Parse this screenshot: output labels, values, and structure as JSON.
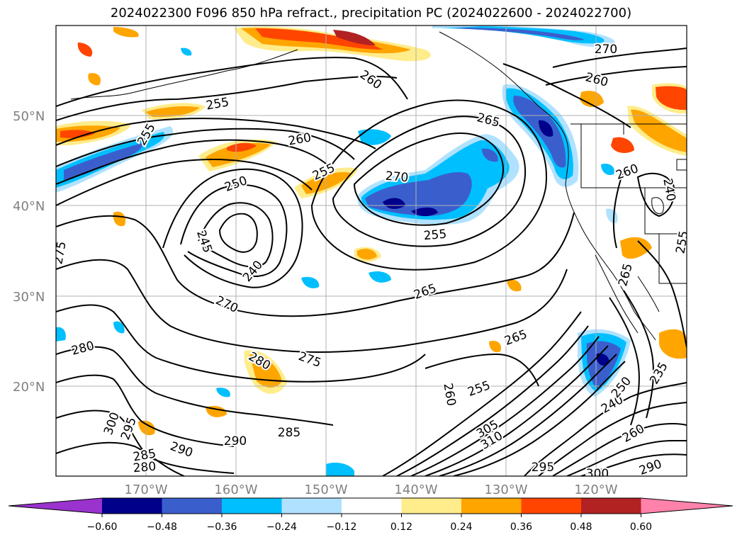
{
  "title": "2024022300 F096 850 hPa refract., precipitation PC (2024022600 - 2024022700)",
  "map": {
    "lat_labels": [
      "50°N",
      "40°N",
      "30°N",
      "20°N"
    ],
    "lon_labels": [
      "170°W",
      "160°W",
      "150°W",
      "140°W",
      "130°W",
      "120°W"
    ],
    "contour_labels": [
      {
        "text": "260",
        "rot": 35
      },
      {
        "text": "270",
        "rot": 5
      },
      {
        "text": "265",
        "rot": 15
      },
      {
        "text": "255",
        "rot": -10
      },
      {
        "text": "255",
        "rot": -60
      },
      {
        "text": "260",
        "rot": -10
      },
      {
        "text": "255",
        "rot": -25
      },
      {
        "text": "250",
        "rot": -20
      },
      {
        "text": "270",
        "rot": 0
      },
      {
        "text": "260",
        "rot": 15
      },
      {
        "text": "255",
        "rot": -5
      },
      {
        "text": "245",
        "rot": 70
      },
      {
        "text": "240",
        "rot": -50
      },
      {
        "text": "270",
        "rot": 25
      },
      {
        "text": "265",
        "rot": -20
      },
      {
        "text": "275",
        "rot": -80
      },
      {
        "text": "280",
        "rot": -15
      },
      {
        "text": "280",
        "rot": 30
      },
      {
        "text": "275",
        "rot": 20
      },
      {
        "text": "265",
        "rot": -20
      },
      {
        "text": "260",
        "rot": 80
      },
      {
        "text": "255",
        "rot": -20
      },
      {
        "text": "300",
        "rot": -70
      },
      {
        "text": "295",
        "rot": -70
      },
      {
        "text": "285",
        "rot": -10
      },
      {
        "text": "290",
        "rot": 20
      },
      {
        "text": "290",
        "rot": 0
      },
      {
        "text": "285",
        "rot": 0
      },
      {
        "text": "280",
        "rot": -5
      },
      {
        "text": "305",
        "rot": -30
      },
      {
        "text": "310",
        "rot": -30
      },
      {
        "text": "295",
        "rot": 0
      },
      {
        "text": "300",
        "rot": 0
      },
      {
        "text": "260",
        "rot": -30
      },
      {
        "text": "240",
        "rot": -30
      },
      {
        "text": "250",
        "rot": -50
      },
      {
        "text": "235",
        "rot": -60
      },
      {
        "text": "290",
        "rot": -20
      },
      {
        "text": "265",
        "rot": -75
      },
      {
        "text": "255",
        "rot": -80
      },
      {
        "text": "260",
        "rot": -20
      },
      {
        "text": "240",
        "rot": 80
      }
    ]
  },
  "colorbar": {
    "tick_labels": [
      "−0.60",
      "−0.48",
      "−0.36",
      "−0.24",
      "−0.12",
      "0.12",
      "0.24",
      "0.36",
      "0.48",
      "0.60"
    ],
    "colors": [
      "#9a32cd",
      "#00008b",
      "#3a5fcd",
      "#00bfff",
      "#b0e2ff",
      "#ffffff",
      "#ffec8b",
      "#ffa500",
      "#ff4500",
      "#b22222",
      "#ff82ab"
    ]
  }
}
